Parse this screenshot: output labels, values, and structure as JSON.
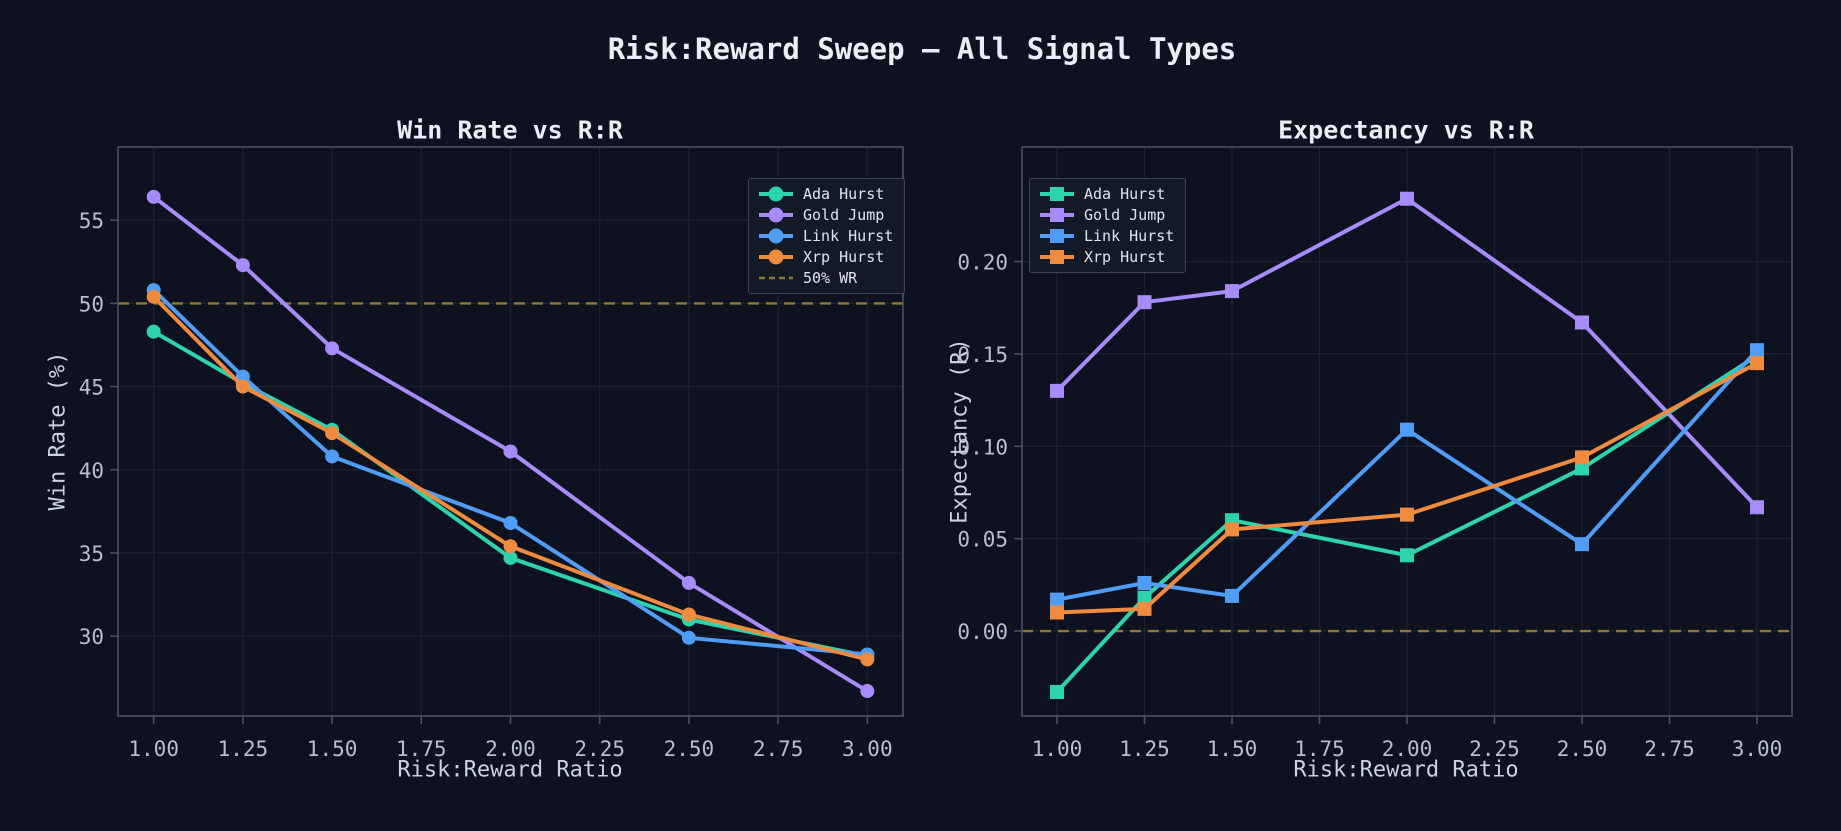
{
  "figure": {
    "title": "Risk:Reward Sweep — All Signal Types",
    "background_color": "#0e1220",
    "title_color": "#eaeef5"
  },
  "styles": {
    "grid_color": "#1d2230",
    "spine_color": "#4a5060",
    "tick_label_color": "#b9bfc9",
    "axis_label_color": "#ccd2dd",
    "legend_text_color": "#dfe3ec",
    "legend_background": "rgba(21,26,39,0.95)",
    "legend_border": "#3c4352"
  },
  "chart_data": [
    {
      "type": "line",
      "title": "Win Rate vs R:R",
      "xlabel": "Risk:Reward Ratio",
      "ylabel": "Win Rate (%)",
      "marker": "circle",
      "legend_position": "top-right",
      "grid": true,
      "x": [
        1.0,
        1.25,
        1.5,
        2.0,
        2.5,
        3.0
      ],
      "xlim": [
        0.9,
        3.1
      ],
      "ylim": [
        25.2,
        59.4
      ],
      "xticks": [
        1.0,
        1.25,
        1.5,
        1.75,
        2.0,
        2.25,
        2.5,
        2.75,
        3.0
      ],
      "xtick_labels": [
        "1.00",
        "1.25",
        "1.50",
        "1.75",
        "2.00",
        "2.25",
        "2.50",
        "2.75",
        "3.00"
      ],
      "yticks": [
        30,
        35,
        40,
        45,
        50,
        55
      ],
      "ytick_labels": [
        "30",
        "35",
        "40",
        "45",
        "50",
        "55"
      ],
      "series": [
        {
          "name": "Ada Hurst",
          "color": "#2dd4ab",
          "values": [
            48.3,
            45.2,
            42.4,
            34.7,
            31.0,
            28.8
          ]
        },
        {
          "name": "Gold Jump",
          "color": "#a78bfa",
          "values": [
            56.4,
            52.3,
            47.3,
            41.1,
            33.2,
            26.7
          ]
        },
        {
          "name": "Link Hurst",
          "color": "#4f9df7",
          "values": [
            50.8,
            45.6,
            40.8,
            36.8,
            29.9,
            28.9
          ]
        },
        {
          "name": "Xrp Hurst",
          "color": "#ee8b3e",
          "values": [
            50.4,
            45.0,
            42.2,
            35.4,
            31.3,
            28.6
          ]
        }
      ],
      "reference_line": {
        "value": 50,
        "label": "50% WR",
        "color": "#8d7b35",
        "style": "dashed"
      },
      "legend": [
        {
          "label": "Ada Hurst",
          "color": "#2dd4ab",
          "marker": "circle"
        },
        {
          "label": "Gold Jump",
          "color": "#a78bfa",
          "marker": "circle"
        },
        {
          "label": "Link Hurst",
          "color": "#4f9df7",
          "marker": "circle"
        },
        {
          "label": "Xrp Hurst",
          "color": "#ee8b3e",
          "marker": "circle"
        },
        {
          "label": "50% WR",
          "color": "#8d7b35",
          "marker": "dash"
        }
      ]
    },
    {
      "type": "line",
      "title": "Expectancy vs R:R",
      "xlabel": "Risk:Reward Ratio",
      "ylabel": "Expectancy (R)",
      "marker": "square",
      "legend_position": "top-left",
      "grid": true,
      "x": [
        1.0,
        1.25,
        1.5,
        2.0,
        2.5,
        3.0
      ],
      "xlim": [
        0.9,
        3.1
      ],
      "ylim": [
        -0.046,
        0.262
      ],
      "xticks": [
        1.0,
        1.25,
        1.5,
        1.75,
        2.0,
        2.25,
        2.5,
        2.75,
        3.0
      ],
      "xtick_labels": [
        "1.00",
        "1.25",
        "1.50",
        "1.75",
        "2.00",
        "2.25",
        "2.50",
        "2.75",
        "3.00"
      ],
      "yticks": [
        0.0,
        0.05,
        0.1,
        0.15,
        0.2
      ],
      "ytick_labels": [
        "0.00",
        "0.05",
        "0.10",
        "0.15",
        "0.20"
      ],
      "series": [
        {
          "name": "Ada Hurst",
          "color": "#2dd4ab",
          "values": [
            -0.033,
            0.018,
            0.06,
            0.041,
            0.088,
            0.149
          ]
        },
        {
          "name": "Gold Jump",
          "color": "#a78bfa",
          "values": [
            0.13,
            0.178,
            0.184,
            0.234,
            0.167,
            0.067
          ]
        },
        {
          "name": "Link Hurst",
          "color": "#4f9df7",
          "values": [
            0.017,
            0.026,
            0.019,
            0.109,
            0.047,
            0.152
          ]
        },
        {
          "name": "Xrp Hurst",
          "color": "#ee8b3e",
          "values": [
            0.01,
            0.012,
            0.055,
            0.063,
            0.094,
            0.145
          ]
        }
      ],
      "reference_line": {
        "value": 0.0,
        "label": null,
        "color": "#8d7b35",
        "style": "dashed"
      },
      "legend": [
        {
          "label": "Ada Hurst",
          "color": "#2dd4ab",
          "marker": "square"
        },
        {
          "label": "Gold Jump",
          "color": "#a78bfa",
          "marker": "square"
        },
        {
          "label": "Link Hurst",
          "color": "#4f9df7",
          "marker": "square"
        },
        {
          "label": "Xrp Hurst",
          "color": "#ee8b3e",
          "marker": "square"
        }
      ]
    }
  ]
}
